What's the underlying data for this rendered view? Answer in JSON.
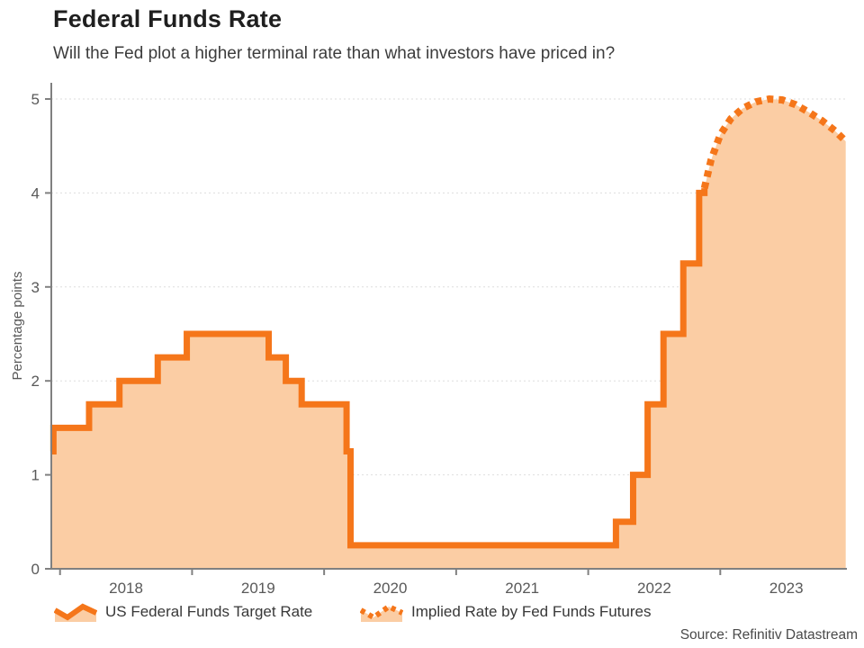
{
  "header": {
    "title": "Federal Funds Rate",
    "subtitle": "Will the Fed plot a higher terminal rate than what investors have priced in?"
  },
  "chart_data": {
    "type": "area",
    "title": "Federal Funds Rate",
    "ylabel": "Percentage points",
    "ylim": [
      0,
      5
    ],
    "yticks": [
      0,
      1,
      2,
      3,
      4,
      5
    ],
    "xticks_years": [
      2018,
      2019,
      2020,
      2021,
      2022,
      2023
    ],
    "x_range": [
      2017.93,
      2023.95
    ],
    "grid": "horizontal-dashed",
    "legend_position": "bottom",
    "colors": {
      "line": "#F5761A",
      "fill": "#FBCDA4",
      "axis": "#808080",
      "grid": "#dedede"
    },
    "series": [
      {
        "name": "US Federal Funds Target Rate",
        "style": "solid-step",
        "points": [
          [
            2017.93,
            1.25
          ],
          [
            2017.95,
            1.5
          ],
          [
            2018.22,
            1.75
          ],
          [
            2018.45,
            2.0
          ],
          [
            2018.74,
            2.25
          ],
          [
            2018.96,
            2.5
          ],
          [
            2019.58,
            2.25
          ],
          [
            2019.71,
            2.0
          ],
          [
            2019.83,
            1.75
          ],
          [
            2020.17,
            1.25
          ],
          [
            2020.2,
            0.25
          ],
          [
            2022.21,
            0.5
          ],
          [
            2022.34,
            1.0
          ],
          [
            2022.45,
            1.75
          ],
          [
            2022.57,
            2.5
          ],
          [
            2022.72,
            3.25
          ],
          [
            2022.84,
            4.0
          ],
          [
            2022.88,
            4.05
          ]
        ]
      },
      {
        "name": "Implied Rate by Fed Funds Futures",
        "style": "dotted",
        "points": [
          [
            2022.88,
            4.05
          ],
          [
            2022.93,
            4.35
          ],
          [
            2023.0,
            4.62
          ],
          [
            2023.08,
            4.79
          ],
          [
            2023.17,
            4.9
          ],
          [
            2023.27,
            4.97
          ],
          [
            2023.37,
            5.0
          ],
          [
            2023.47,
            4.99
          ],
          [
            2023.57,
            4.94
          ],
          [
            2023.67,
            4.86
          ],
          [
            2023.77,
            4.77
          ],
          [
            2023.87,
            4.66
          ],
          [
            2023.95,
            4.55
          ]
        ]
      }
    ]
  },
  "legend": {
    "items": [
      {
        "label": "US Federal Funds Target Rate",
        "style": "solid"
      },
      {
        "label": "Implied Rate by Fed Funds Futures",
        "style": "dotted"
      }
    ]
  },
  "source": "Source: Refinitiv Datastream"
}
